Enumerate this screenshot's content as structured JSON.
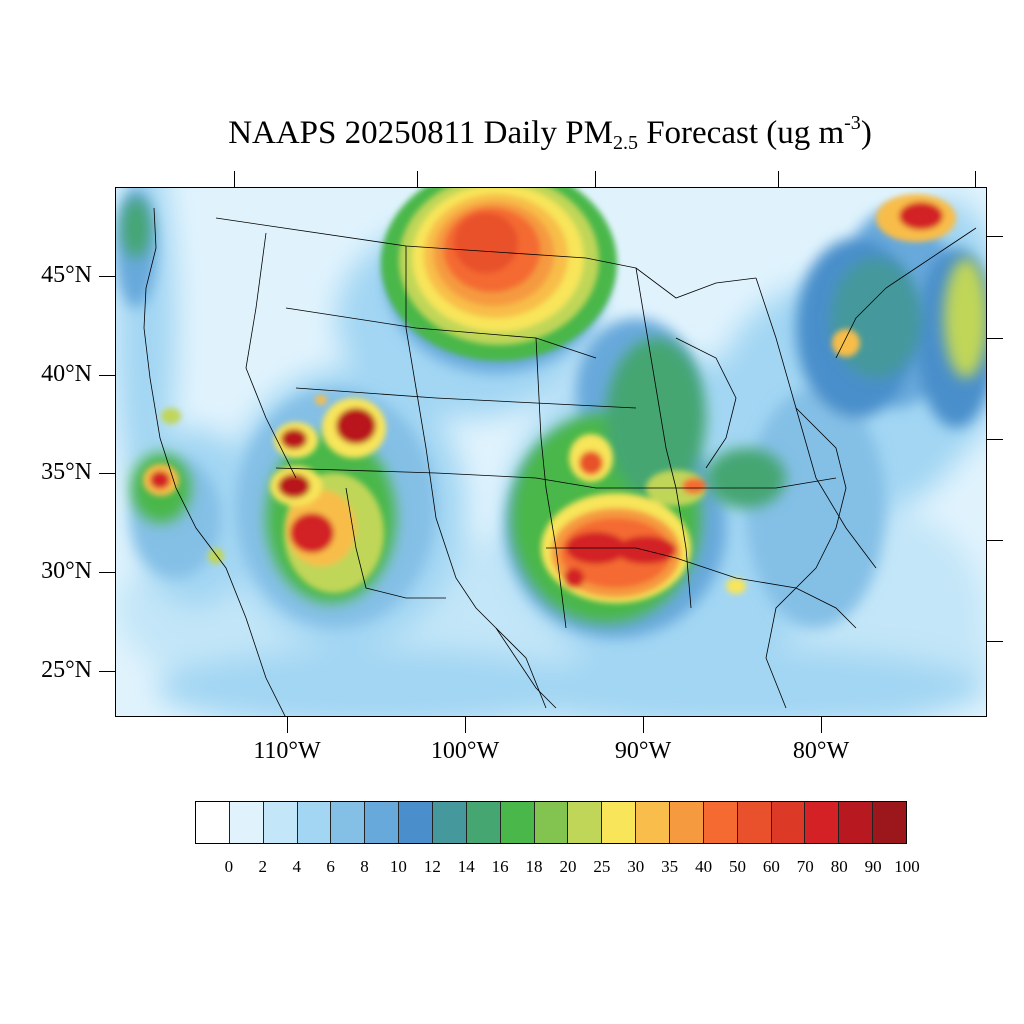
{
  "title": {
    "prefix": "NAAPS 20250811 Daily PM",
    "subscript": "2.5",
    "middle": " Forecast (ug m",
    "superscript": "-3",
    "suffix": ")"
  },
  "lat_labels": [
    "45°N",
    "40°N",
    "35°N",
    "30°N",
    "25°N"
  ],
  "lon_labels": [
    "110°W",
    "100°W",
    "90°W",
    "80°W"
  ],
  "colorbar": {
    "labels": [
      "0",
      "2",
      "4",
      "6",
      "8",
      "10",
      "12",
      "14",
      "16",
      "18",
      "20",
      "25",
      "30",
      "35",
      "40",
      "50",
      "60",
      "70",
      "80",
      "90",
      "100"
    ],
    "colors": [
      "#ffffff",
      "#e0f3fd",
      "#c3e6f8",
      "#a2d6f3",
      "#84bfe6",
      "#67a9db",
      "#4a8fcb",
      "#45999c",
      "#45a672",
      "#4ab74a",
      "#83c451",
      "#c0d659",
      "#f8e55a",
      "#f8bd4a",
      "#f59a3f",
      "#f46a30",
      "#e8512b",
      "#dc3a27",
      "#d32126",
      "#b8181f",
      "#9b171c"
    ]
  }
}
